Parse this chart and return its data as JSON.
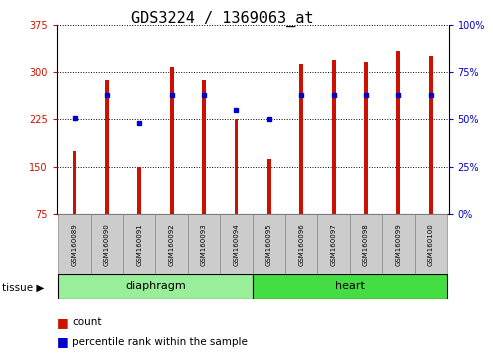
{
  "title": "GDS3224 / 1369063_at",
  "samples": [
    "GSM160089",
    "GSM160090",
    "GSM160091",
    "GSM160092",
    "GSM160093",
    "GSM160094",
    "GSM160095",
    "GSM160096",
    "GSM160097",
    "GSM160098",
    "GSM160099",
    "GSM160100"
  ],
  "count_values": [
    175,
    287,
    150,
    308,
    287,
    225,
    162,
    313,
    320,
    316,
    333,
    325
  ],
  "percentile_values": [
    51,
    63,
    48,
    63,
    63,
    55,
    50,
    63,
    63,
    63,
    63,
    63
  ],
  "baseline": 75,
  "ylim_left": [
    75,
    375
  ],
  "ylim_right": [
    0,
    100
  ],
  "yticks_left": [
    75,
    150,
    225,
    300,
    375
  ],
  "yticks_right": [
    0,
    25,
    50,
    75,
    100
  ],
  "bar_color": "#cc1100",
  "marker_color": "#0000cc",
  "tissue_groups": [
    {
      "label": "diaphragm",
      "start": 0,
      "end": 6,
      "color": "#99ee99"
    },
    {
      "label": "heart",
      "start": 6,
      "end": 12,
      "color": "#44dd44"
    }
  ],
  "tissue_label": "tissue",
  "legend_count": "count",
  "legend_percentile": "percentile rank within the sample",
  "title_fontsize": 11,
  "tick_fontsize": 7,
  "label_fontsize": 8,
  "bar_width": 0.12
}
